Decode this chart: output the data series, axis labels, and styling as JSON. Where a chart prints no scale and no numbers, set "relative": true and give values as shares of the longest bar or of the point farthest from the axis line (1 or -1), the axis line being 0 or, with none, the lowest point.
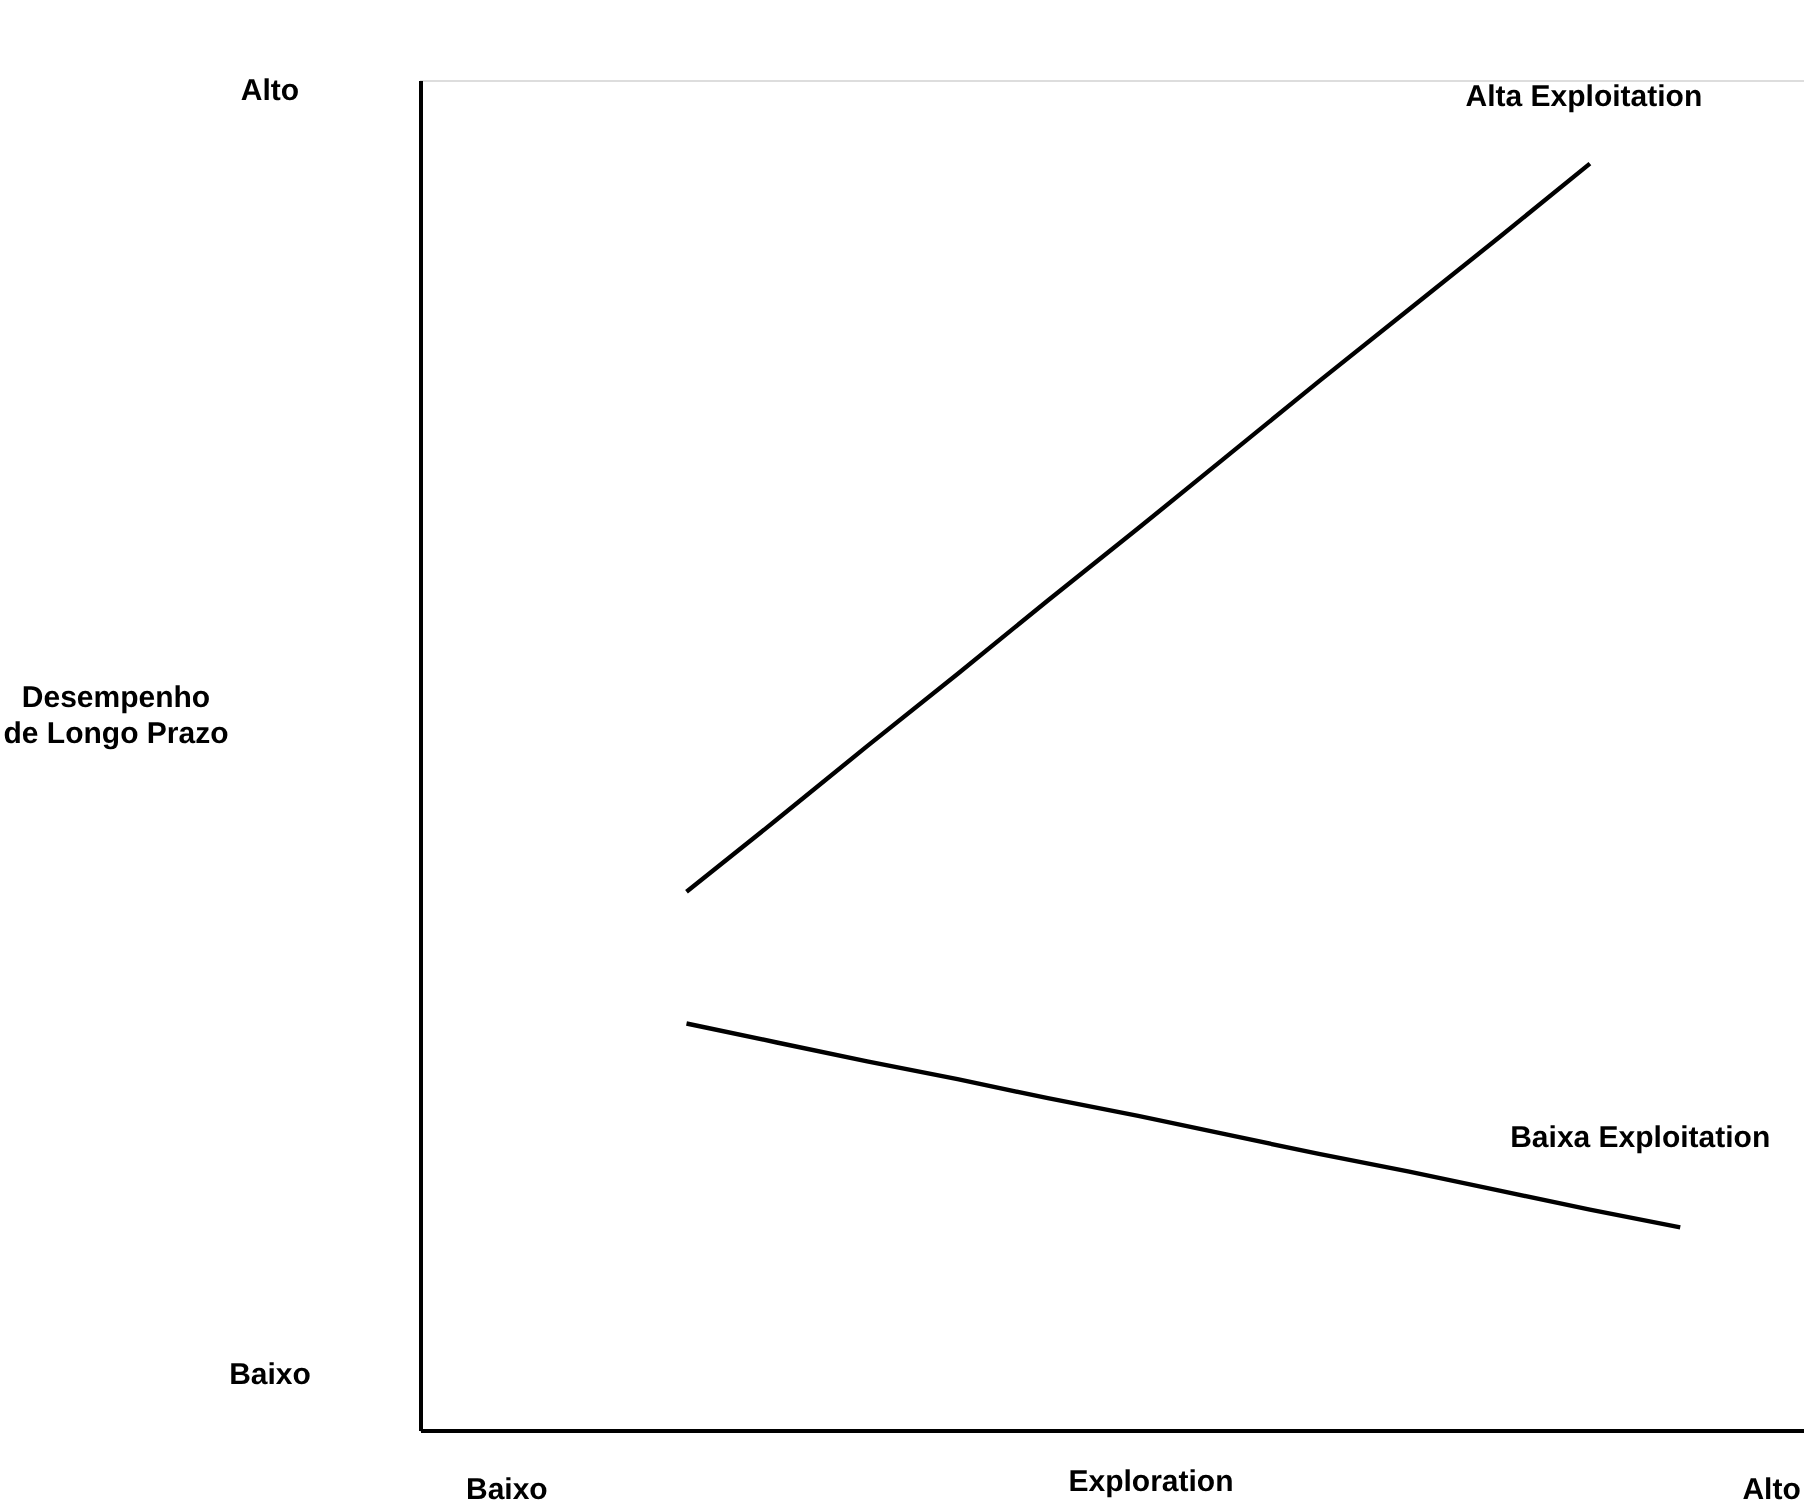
{
  "chart_data": {
    "type": "line",
    "relative": true,
    "xlabel": "Exploration",
    "categories": [
      "Baixo",
      null,
      null,
      null,
      null,
      null,
      null,
      null,
      null,
      null,
      null,
      null,
      null,
      null,
      "Alto"
    ],
    "annotations": [
      "Alto",
      "Baixo",
      "Desempenho\nde Longo Prazo"
    ],
    "series": [
      {
        "name": "Alta Exploitation",
        "color": "#000000",
        "values": [
          null,
          null,
          0.425,
          0.482,
          0.54,
          0.597,
          0.655,
          0.712,
          0.77,
          0.828,
          0.885,
          0.942,
          1.0,
          null,
          null
        ]
      },
      {
        "name": "Baixa Exploitation",
        "color": "#000000",
        "values": [
          null,
          null,
          0.321,
          0.306,
          0.291,
          0.277,
          0.262,
          0.248,
          0.233,
          0.218,
          0.204,
          0.189,
          0.174,
          0.16,
          null
        ]
      }
    ],
    "legend": false,
    "grid": false,
    "marker": "none",
    "line_style": "solid"
  }
}
